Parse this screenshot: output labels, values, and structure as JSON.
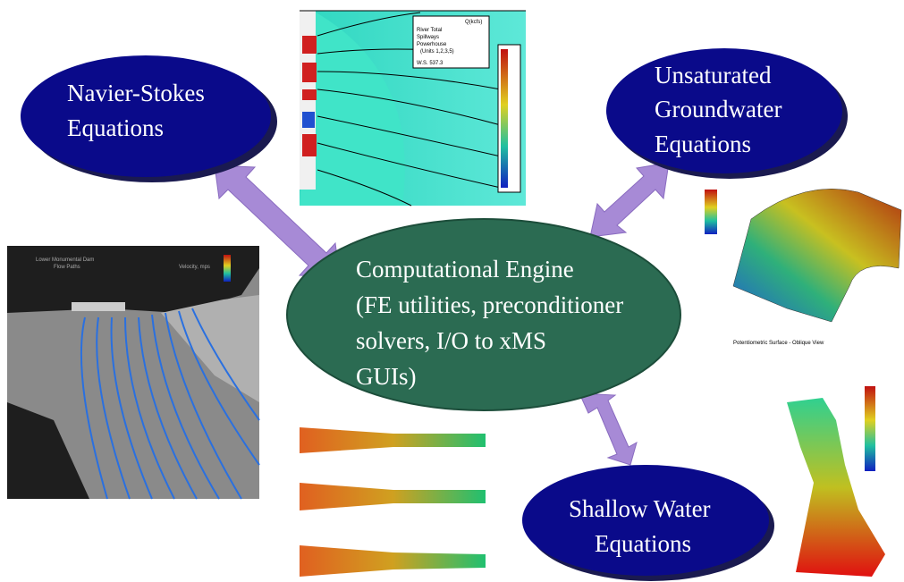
{
  "nodes": [
    {
      "label": [
        "Navier-Stokes",
        "Equations"
      ]
    },
    {
      "label": [
        "Unsaturated",
        "Groundwater",
        "Equations"
      ]
    },
    {
      "label": [
        "Computational Engine",
        "(FE utilities, preconditioner",
        "solvers, I/O to xMS",
        "GUIs)"
      ]
    },
    {
      "label": [
        "Shallow Water",
        "Equations"
      ]
    }
  ],
  "images": [
    {
      "texts": [
        "Q(kcfs)",
        "River Total",
        "Spillways",
        "Powerhouse",
        "(Units 1,2,3,5)",
        "W.S. 537.3"
      ]
    },
    {
      "texts": [
        "Lower Monumental Dam",
        "Flow Paths",
        "Velocity, mps"
      ]
    },
    {
      "texts": [
        "Potentiometric Surface - Oblique View"
      ]
    }
  ]
}
